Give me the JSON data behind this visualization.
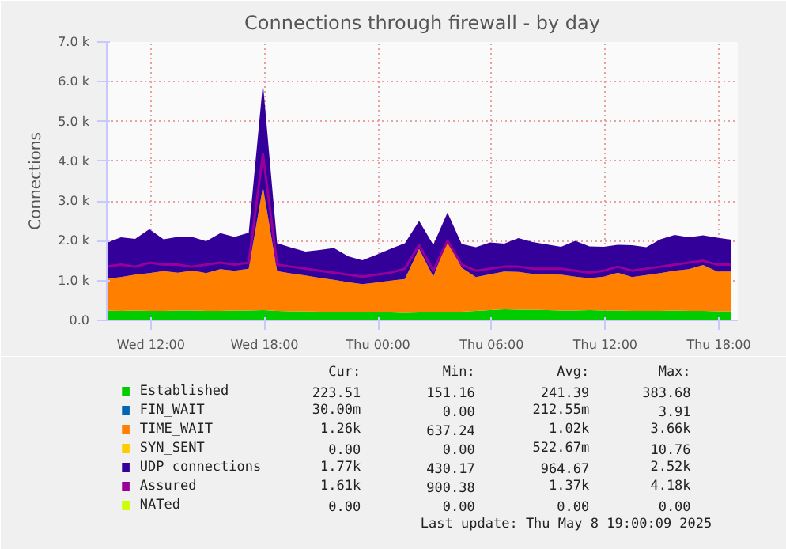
{
  "chart_data": {
    "type": "area",
    "title": "Connections through firewall - by day",
    "ylabel": "Connections",
    "stacked": true,
    "grid": true,
    "legend": "bottom",
    "x": [
      "2025-05-07T09:40",
      "2025-05-07T10:25",
      "2025-05-07T11:10",
      "2025-05-07T11:55",
      "2025-05-07T12:40",
      "2025-05-07T13:25",
      "2025-05-07T14:10",
      "2025-05-07T14:55",
      "2025-05-07T15:40",
      "2025-05-07T16:25",
      "2025-05-07T17:10",
      "2025-05-07T17:55",
      "2025-05-07T18:40",
      "2025-05-07T19:25",
      "2025-05-07T20:10",
      "2025-05-07T20:55",
      "2025-05-07T21:40",
      "2025-05-07T22:25",
      "2025-05-07T23:10",
      "2025-05-07T23:55",
      "2025-05-08T00:40",
      "2025-05-08T01:25",
      "2025-05-08T02:10",
      "2025-05-08T02:55",
      "2025-05-08T03:40",
      "2025-05-08T04:25",
      "2025-05-08T05:10",
      "2025-05-08T05:55",
      "2025-05-08T06:40",
      "2025-05-08T07:25",
      "2025-05-08T08:10",
      "2025-05-08T08:55",
      "2025-05-08T09:40",
      "2025-05-08T10:25",
      "2025-05-08T11:10",
      "2025-05-08T11:55",
      "2025-05-08T12:40",
      "2025-05-08T13:25",
      "2025-05-08T14:10",
      "2025-05-08T14:55",
      "2025-05-08T15:40",
      "2025-05-08T16:25",
      "2025-05-08T17:10",
      "2025-05-08T17:55",
      "2025-05-08T18:40"
    ],
    "xlim": [
      "2025-05-07T09:40",
      "2025-05-08T19:00"
    ],
    "xticks": [
      {
        "value": "2025-05-07T12:00",
        "label": "Wed 12:00"
      },
      {
        "value": "2025-05-07T18:00",
        "label": "Wed 18:00"
      },
      {
        "value": "2025-05-08T00:00",
        "label": "Thu 00:00"
      },
      {
        "value": "2025-05-08T06:00",
        "label": "Thu 06:00"
      },
      {
        "value": "2025-05-08T12:00",
        "label": "Thu 12:00"
      },
      {
        "value": "2025-05-08T18:00",
        "label": "Thu 18:00"
      }
    ],
    "ylim": [
      0,
      7000
    ],
    "yticks": [
      {
        "value": 0,
        "label": "0.0"
      },
      {
        "value": 1000,
        "label": "1.0 k"
      },
      {
        "value": 2000,
        "label": "2.0 k"
      },
      {
        "value": 3000,
        "label": "3.0 k"
      },
      {
        "value": 4000,
        "label": "4.0 k"
      },
      {
        "value": 5000,
        "label": "5.0 k"
      },
      {
        "value": 6000,
        "label": "6.0 k"
      },
      {
        "value": 7000,
        "label": "7.0 k"
      }
    ],
    "series": [
      {
        "name": "Established",
        "color": "#00cc00",
        "values": [
          250,
          240,
          250,
          240,
          240,
          250,
          250,
          240,
          240,
          250,
          250,
          260,
          240,
          230,
          230,
          220,
          220,
          210,
          210,
          200,
          200,
          190,
          200,
          200,
          210,
          220,
          240,
          260,
          280,
          270,
          270,
          260,
          250,
          250,
          260,
          250,
          250,
          240,
          240,
          240,
          250,
          240,
          240,
          230,
          230
        ]
      },
      {
        "name": "FIN_WAIT",
        "color": "#0066b3",
        "values": [
          null,
          null,
          null,
          null,
          null,
          null,
          null,
          null,
          null,
          null,
          null,
          null,
          null,
          null,
          null,
          null,
          null,
          null,
          null,
          null,
          null,
          null,
          null,
          null,
          null,
          null,
          null,
          null,
          null,
          null,
          null,
          null,
          null,
          null,
          null,
          null,
          null,
          null,
          null,
          null,
          null,
          null,
          null,
          null,
          null
        ]
      },
      {
        "name": "TIME_WAIT",
        "color": "#ff8000",
        "values": [
          800,
          850,
          900,
          950,
          1000,
          950,
          1000,
          950,
          1050,
          1000,
          1050,
          3100,
          1000,
          950,
          900,
          850,
          800,
          750,
          700,
          750,
          800,
          850,
          1600,
          900,
          1800,
          1100,
          850,
          900,
          950,
          950,
          900,
          900,
          900,
          850,
          800,
          850,
          950,
          850,
          900,
          950,
          1000,
          1050,
          1150,
          1000,
          1000
        ]
      },
      {
        "name": "SYN_SENT",
        "color": "#ffcc00",
        "values": [
          null,
          null,
          null,
          null,
          null,
          null,
          null,
          null,
          null,
          null,
          null,
          null,
          null,
          null,
          null,
          null,
          null,
          null,
          null,
          null,
          null,
          null,
          null,
          null,
          null,
          null,
          null,
          null,
          null,
          null,
          null,
          null,
          null,
          null,
          null,
          null,
          null,
          null,
          null,
          null,
          null,
          null,
          null,
          null,
          null
        ]
      },
      {
        "name": "UDP connections",
        "color": "#330099",
        "values": [
          900,
          1000,
          900,
          1100,
          800,
          900,
          850,
          800,
          900,
          850,
          900,
          2600,
          700,
          650,
          600,
          700,
          800,
          650,
          600,
          700,
          800,
          900,
          700,
          800,
          700,
          600,
          750,
          800,
          700,
          850,
          800,
          750,
          700,
          900,
          800,
          750,
          700,
          800,
          700,
          850,
          900,
          800,
          750,
          850,
          800
        ]
      },
      {
        "name": "Assured",
        "color": "#990099",
        "type": "line",
        "values": [
          1350,
          1400,
          1350,
          1450,
          1400,
          1400,
          1350,
          1400,
          1450,
          1400,
          1450,
          4180,
          1400,
          1350,
          1300,
          1250,
          1200,
          1150,
          1100,
          1150,
          1200,
          1300,
          1900,
          1250,
          2000,
          1400,
          1250,
          1300,
          1350,
          1350,
          1300,
          1300,
          1300,
          1250,
          1200,
          1250,
          1350,
          1250,
          1300,
          1350,
          1400,
          1450,
          1500,
          1400,
          1400
        ]
      },
      {
        "name": "NATed",
        "color": "#ccff00",
        "type": "line",
        "values": [
          null,
          null,
          null,
          null,
          null,
          null,
          null,
          null,
          null,
          null,
          null,
          null,
          null,
          null,
          null,
          null,
          null,
          null,
          null,
          null,
          null,
          null,
          null,
          null,
          null,
          null,
          null,
          null,
          null,
          null,
          null,
          null,
          null,
          null,
          null,
          null,
          null,
          null,
          null,
          null,
          null,
          null,
          null,
          null,
          null
        ]
      }
    ],
    "annotations": [
      "Cur:",
      "Min:",
      "Avg:",
      "Max:",
      "223.51",
      "151.16",
      "241.39",
      "383.68",
      "30.00m",
      "0.00",
      "212.55m",
      "3.91",
      "1.26k",
      "637.24",
      "1.02k",
      "3.66k",
      "0.00",
      "0.00",
      "522.67m",
      "10.76",
      "1.77k",
      "430.17",
      "964.67",
      "2.52k",
      "1.61k",
      "900.38",
      "1.37k",
      "4.18k",
      "0.00",
      "0.00",
      "0.00",
      "0.00",
      "Last update: Thu May  8 19:00:09 2025"
    ]
  }
}
